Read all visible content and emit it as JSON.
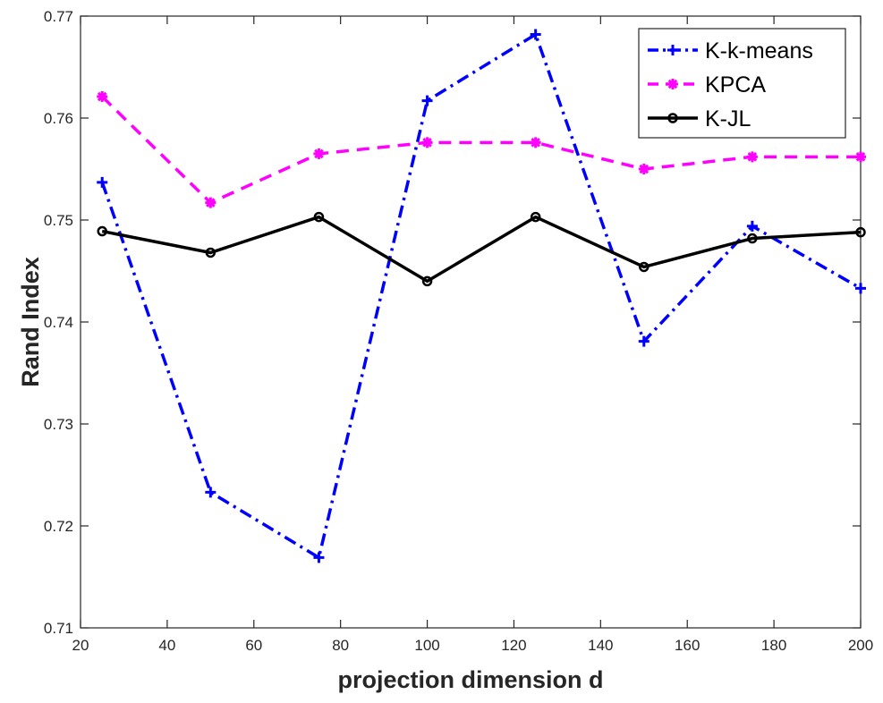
{
  "chart_data": {
    "type": "line",
    "title": "",
    "xlabel": "projection dimension d",
    "ylabel": "Rand Index",
    "xlim": [
      20,
      200
    ],
    "ylim": [
      0.71,
      0.77
    ],
    "x": [
      25,
      50,
      75,
      100,
      125,
      150,
      175,
      200
    ],
    "xticks": [
      20,
      40,
      60,
      80,
      100,
      120,
      140,
      160,
      180,
      200
    ],
    "yticks": [
      0.71,
      0.72,
      0.73,
      0.74,
      0.75,
      0.76,
      0.77
    ],
    "xtick_labels": [
      "20",
      "40",
      "60",
      "80",
      "100",
      "120",
      "140",
      "160",
      "180",
      "200"
    ],
    "ytick_labels": [
      "0.71",
      "0.72",
      "0.73",
      "0.74",
      "0.75",
      "0.76",
      "0.77"
    ],
    "grid": false,
    "legend_position": "top-right",
    "series": [
      {
        "name": "K-k-means",
        "color": "#0000ff",
        "line_style": "dash-dot",
        "marker": "plus",
        "values": [
          0.7537,
          0.7233,
          0.7169,
          0.7617,
          0.7682,
          0.7381,
          0.7494,
          0.7433
        ]
      },
      {
        "name": "KPCA",
        "color": "#ff00ff",
        "line_style": "dashed",
        "marker": "asterisk",
        "values": [
          0.7621,
          0.7517,
          0.7565,
          0.7576,
          0.7576,
          0.755,
          0.7562,
          0.7562
        ]
      },
      {
        "name": "K-JL",
        "color": "#000000",
        "line_style": "solid",
        "marker": "circle",
        "values": [
          0.7489,
          0.7468,
          0.7503,
          0.744,
          0.7503,
          0.7454,
          0.7482,
          0.7488
        ]
      }
    ]
  }
}
